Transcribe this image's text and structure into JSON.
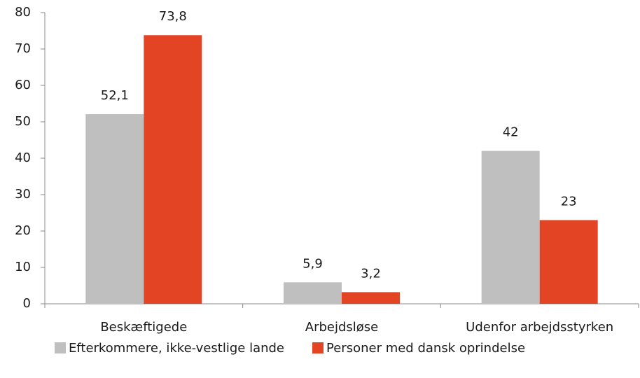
{
  "chart_data": {
    "type": "bar",
    "categories": [
      "Beskæftigede",
      "Arbejdsløse",
      "Udenfor arbejdsstyrken"
    ],
    "series": [
      {
        "name": "Efterkommere, ikke-vestlige lande",
        "color": "#bfbfbf",
        "values": [
          52.1,
          5.9,
          42
        ],
        "value_labels": [
          "52,1",
          "5,9",
          "42"
        ]
      },
      {
        "name": "Personer med dansk oprindelse",
        "color": "#e34524",
        "values": [
          73.8,
          3.2,
          23
        ],
        "value_labels": [
          "73,8",
          "3,2",
          "23"
        ]
      }
    ],
    "ylim": [
      0,
      80
    ],
    "yticks": [
      0,
      10,
      20,
      30,
      40,
      50,
      60,
      70,
      80
    ],
    "grid": false,
    "legend": "bottom"
  }
}
